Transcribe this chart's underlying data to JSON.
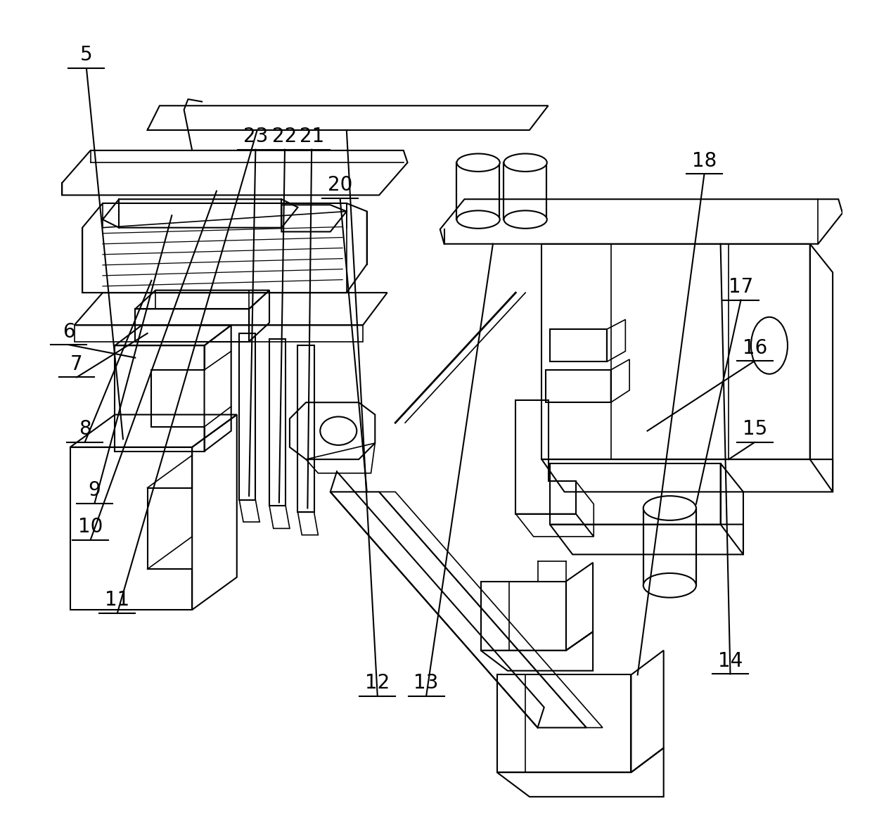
{
  "bg_color": "#ffffff",
  "line_color": "#000000",
  "line_width": 1.5,
  "label_fontsize": 20,
  "figsize": [
    12.4,
    11.56
  ]
}
